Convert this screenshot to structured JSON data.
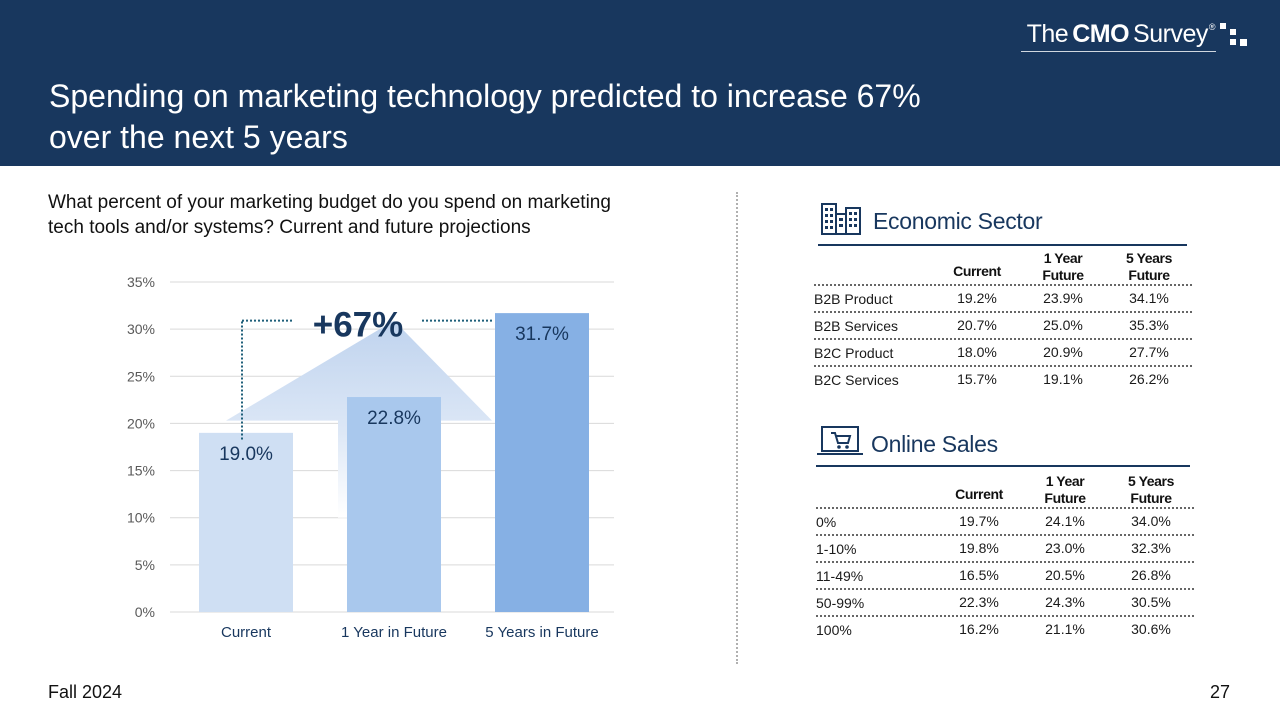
{
  "header": {
    "title_line1": "Spending on marketing technology predicted to increase 67%",
    "title_line2": "over the next 5 years",
    "brand": {
      "the": "The",
      "cmo": "CMO",
      "survey": "Survey",
      "reg": "®"
    }
  },
  "question": {
    "line1": "What percent of your marketing budget do you spend on marketing",
    "line2": "tech tools and/or systems? Current and future projections"
  },
  "chart_data": {
    "type": "bar",
    "title": "",
    "xlabel": "",
    "ylabel": "",
    "categories": [
      "Current",
      "1 Year in Future",
      "5 Years in Future"
    ],
    "values": [
      19.0,
      22.8,
      31.7
    ],
    "value_labels": [
      "19.0%",
      "22.8%",
      "31.7%"
    ],
    "ylim": [
      0,
      35
    ],
    "yticks": [
      0,
      5,
      10,
      15,
      20,
      25,
      30,
      35
    ],
    "ytick_labels": [
      "0%",
      "5%",
      "10%",
      "15%",
      "20%",
      "25%",
      "30%",
      "35%"
    ],
    "grid": true,
    "annotation": "+67%",
    "colors": [
      "#cfdff3",
      "#a9c8ed",
      "#86b0e4"
    ]
  },
  "economic_sector": {
    "title": "Economic Sector",
    "icon": "buildings-icon",
    "headers": [
      "",
      "Current",
      "1 Year Future",
      "5 Years Future"
    ],
    "header_lines": [
      [
        "",
        ""
      ],
      [
        "",
        "Current"
      ],
      [
        "1 Year",
        "Future"
      ],
      [
        "5 Years",
        "Future"
      ]
    ],
    "rows": [
      [
        "B2B Product",
        "19.2%",
        "23.9%",
        "34.1%"
      ],
      [
        "B2B Services",
        "20.7%",
        "25.0%",
        "35.3%"
      ],
      [
        "B2C Product",
        "18.0%",
        "20.9%",
        "27.7%"
      ],
      [
        "B2C Services",
        "15.7%",
        "19.1%",
        "26.2%"
      ]
    ]
  },
  "online_sales": {
    "title": "Online Sales",
    "icon": "shopping-cart-laptop-icon",
    "headers": [
      "",
      "Current",
      "1 Year Future",
      "5 Years Future"
    ],
    "header_lines": [
      [
        "",
        ""
      ],
      [
        "",
        "Current"
      ],
      [
        "1 Year",
        "Future"
      ],
      [
        "5 Years",
        "Future"
      ]
    ],
    "rows": [
      [
        "0%",
        "19.7%",
        "24.1%",
        "34.0%"
      ],
      [
        "1-10%",
        "19.8%",
        "23.0%",
        "32.3%"
      ],
      [
        "11-49%",
        "16.5%",
        "20.5%",
        "26.8%"
      ],
      [
        "50-99%",
        "22.3%",
        "24.3%",
        "30.5%"
      ],
      [
        "100%",
        "16.2%",
        "21.1%",
        "30.6%"
      ]
    ]
  },
  "footer": {
    "left": "Fall 2024",
    "page": "27"
  },
  "colors": {
    "navy": "#18375e",
    "grid": "#d9d9d9",
    "axis_text": "#595959",
    "category_text": "#18375e"
  }
}
